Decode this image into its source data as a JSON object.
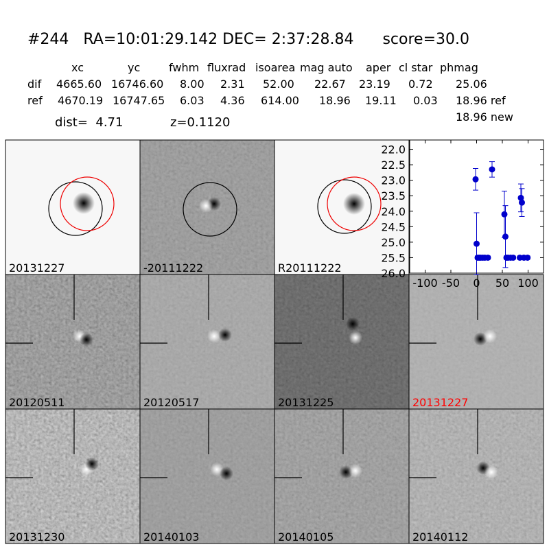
{
  "header": {
    "title": "#244   RA=10:01:29.142 DEC= 2:37:28.84      score=30.0"
  },
  "table": {
    "columns": [
      "xc",
      "yc",
      "fwhm",
      "fluxrad",
      "isoarea",
      "mag auto",
      "aper",
      "cl star",
      "phmag"
    ],
    "rows": [
      [
        "dif",
        "4665.60",
        "16746.60",
        "8.00",
        "2.31",
        "52.00",
        "22.67",
        "23.19",
        "0.72",
        "25.06"
      ],
      [
        "ref",
        "4670.19",
        "16747.65",
        "6.03",
        "4.36",
        "614.00",
        "18.96",
        "19.11",
        "0.03",
        "18.96 ref"
      ]
    ],
    "phmag_new": "18.96 new"
  },
  "info": {
    "dist": "dist=  4.71",
    "z": "z=0.1120"
  },
  "panels": [
    {
      "label": "20131227",
      "color": "#000000"
    },
    {
      "label": "-20111222",
      "color": "#000000"
    },
    {
      "label": "R20111222",
      "color": "#000000"
    },
    {
      "label": "20120511",
      "color": "#000000"
    },
    {
      "label": "20120517",
      "color": "#000000"
    },
    {
      "label": "20131225",
      "color": "#000000"
    },
    {
      "label": "20131227",
      "color": "#ff0000"
    },
    {
      "label": "20131230",
      "color": "#000000"
    },
    {
      "label": "20140103",
      "color": "#000000"
    },
    {
      "label": "20140105",
      "color": "#000000"
    },
    {
      "label": "20140112",
      "color": "#000000"
    }
  ],
  "chart_data": {
    "type": "scatter",
    "y_inverted": true,
    "x": [
      -2,
      0,
      2,
      5,
      8,
      12,
      16,
      22,
      30,
      54,
      56,
      58,
      61,
      66,
      71,
      84,
      86,
      88,
      92,
      99
    ],
    "series": [
      {
        "color": "#0000cc",
        "values": [
          22.97,
          25.05,
          25.5,
          25.5,
          25.5,
          25.5,
          25.5,
          25.5,
          22.65,
          24.1,
          24.82,
          25.5,
          25.5,
          25.5,
          25.5,
          25.5,
          23.57,
          23.72,
          25.5,
          25.5
        ],
        "errors": [
          0.35,
          1.0,
          0.05,
          0.05,
          0.05,
          0.05,
          0.05,
          0.05,
          0.25,
          0.75,
          1.0,
          0.05,
          0.05,
          0.05,
          0.05,
          0.05,
          0.45,
          0.45,
          0.05,
          0.05
        ]
      }
    ],
    "xlim": [
      -130,
      130
    ],
    "xticks": [
      -100,
      -50,
      0,
      50,
      100
    ],
    "ylim": [
      21.7,
      26.0
    ],
    "yticks": [
      {
        "value": 22,
        "label": "22.0"
      },
      22.5,
      {
        "value": 23,
        "label": "23.0"
      },
      23.5,
      {
        "value": 24,
        "label": "24.0"
      },
      24.5,
      {
        "value": 25,
        "label": "25.0"
      },
      25.5,
      {
        "value": 26,
        "label": "26.0"
      }
    ]
  }
}
